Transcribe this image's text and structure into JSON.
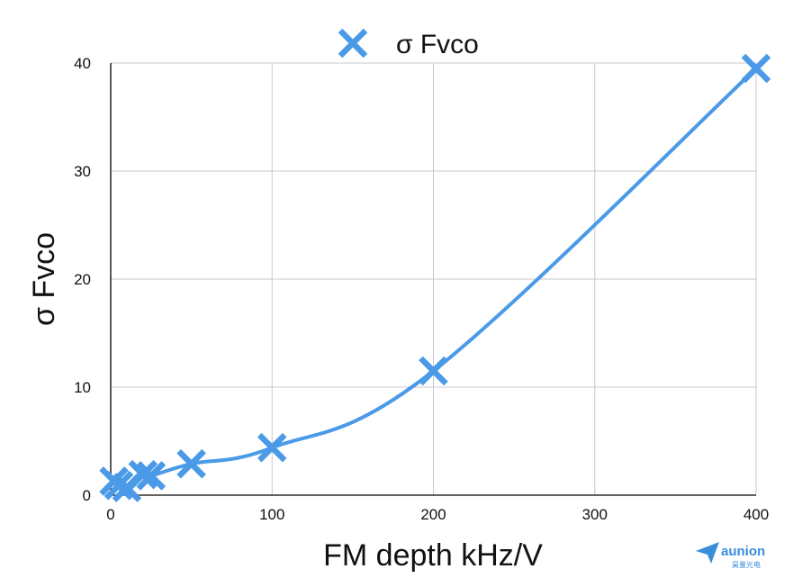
{
  "chart_data": {
    "type": "line",
    "legend": "σ Fvco",
    "legend_position": "top",
    "xlabel": "FM depth kHz/V",
    "ylabel": "σ Fvco",
    "xlim": [
      0,
      400
    ],
    "ylim": [
      0,
      40
    ],
    "x_ticks": [
      "0",
      "100",
      "200",
      "300",
      "400"
    ],
    "y_ticks": [
      "0",
      "10",
      "20",
      "30",
      "40"
    ],
    "grid": true,
    "line_color": "#4a9ae8",
    "marker": "x",
    "series": [
      {
        "name": "σ Fvco",
        "points": [
          {
            "x": 2,
            "y": 1.3
          },
          {
            "x": 5,
            "y": 0.9
          },
          {
            "x": 10,
            "y": 0.7
          },
          {
            "x": 20,
            "y": 1.9
          },
          {
            "x": 25,
            "y": 1.8
          },
          {
            "x": 50,
            "y": 2.9
          },
          {
            "x": 100,
            "y": 4.4
          },
          {
            "x": 200,
            "y": 11.5
          },
          {
            "x": 400,
            "y": 39.5
          }
        ]
      }
    ]
  },
  "watermark": {
    "brand": "aunion",
    "sub": "昊量光电",
    "color": "#3a8ddb"
  }
}
